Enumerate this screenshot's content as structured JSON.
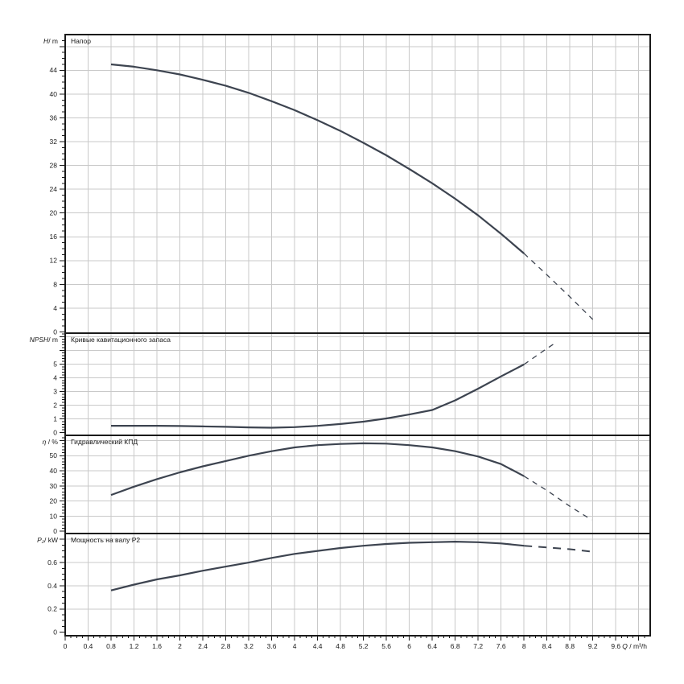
{
  "chart_meta": {
    "background": "#ffffff",
    "curve_color": "#3d4450",
    "grid_color": "#c9c9c9",
    "frame_color": "#1a1a1a",
    "text_color": "#1a1a1a",
    "x_axis": {
      "label_var": "Q",
      "label_unit": " / m³/h",
      "min": 0,
      "max": 10.2,
      "tick_step": 0.4,
      "minor_step": 0.1,
      "label_max": 9.6
    }
  },
  "chart_data": [
    {
      "type": "line",
      "name": "head",
      "title": "Напор",
      "ylabel_var": "H",
      "ylabel_unit": "/ m",
      "ylim": [
        -0.2,
        50
      ],
      "ytick_step": 4,
      "ytick_label_max": 44,
      "yminor_step": 1,
      "series": [
        {
          "name": "head-curve",
          "style": "solid",
          "x": [
            0.8,
            1.2,
            1.6,
            2,
            2.4,
            2.8,
            3.2,
            3.6,
            4,
            4.4,
            4.8,
            5.2,
            5.6,
            6,
            6.4,
            6.8,
            7.2,
            7.6,
            8
          ],
          "y": [
            45,
            44.6,
            44,
            43.3,
            42.4,
            41.4,
            40.2,
            38.8,
            37.3,
            35.6,
            33.8,
            31.8,
            29.7,
            27.4,
            25,
            22.4,
            19.6,
            16.5,
            13.2
          ]
        },
        {
          "name": "head-curve-extrapolated",
          "style": "dashed",
          "x": [
            8,
            8.4,
            8.8,
            9.2
          ],
          "y": [
            13.2,
            9.6,
            5.9,
            2.1
          ]
        }
      ]
    },
    {
      "type": "line",
      "name": "npsh",
      "title": "Кривые кавитационного запаса",
      "ylabel_var": "NPSH",
      "ylabel_unit": "/ m",
      "ylim": [
        -0.2,
        7.25
      ],
      "ytick_step": 1,
      "ytick_label_max": 5,
      "yminor_step": 0.2,
      "series": [
        {
          "name": "npsh-curve",
          "style": "solid",
          "x": [
            0.8,
            1.2,
            1.6,
            2,
            2.4,
            2.8,
            3.2,
            3.6,
            4,
            4.4,
            4.8,
            5.2,
            5.6,
            6,
            6.4,
            6.8,
            7.2,
            7.6,
            8
          ],
          "y": [
            0.5,
            0.5,
            0.5,
            0.48,
            0.45,
            0.42,
            0.38,
            0.36,
            0.4,
            0.49,
            0.63,
            0.8,
            1.03,
            1.32,
            1.65,
            2.35,
            3.2,
            4.1,
            4.97
          ]
        },
        {
          "name": "npsh-curve-extrapolated",
          "style": "dashed",
          "x": [
            8,
            8.3,
            8.55
          ],
          "y": [
            4.97,
            5.85,
            6.55
          ]
        }
      ]
    },
    {
      "type": "line",
      "name": "efficiency",
      "title": "Гидравлический КПД",
      "ylabel_var": "η",
      "ylabel_unit": " / %",
      "ylim": [
        -1.5,
        63.5
      ],
      "ytick_step": 10,
      "ytick_label_max": 50,
      "yminor_step": 2,
      "series": [
        {
          "name": "efficiency-curve",
          "style": "solid",
          "x": [
            0.8,
            1.2,
            1.6,
            2,
            2.4,
            2.8,
            3.2,
            3.6,
            4,
            4.4,
            4.8,
            5.2,
            5.6,
            6,
            6.4,
            6.8,
            7.2,
            7.6,
            8
          ],
          "y": [
            24,
            29.5,
            34.5,
            39,
            43,
            46.5,
            50,
            53,
            55.5,
            57,
            57.8,
            58.2,
            58,
            57,
            55.5,
            53,
            49.5,
            44.5,
            36.5
          ]
        },
        {
          "name": "efficiency-curve-extrapolated",
          "style": "dashed",
          "x": [
            8,
            8.4,
            8.8,
            9.18
          ],
          "y": [
            36.5,
            27,
            16.5,
            7.5
          ]
        }
      ]
    },
    {
      "type": "line",
      "name": "power",
      "title": "Мощность на валу P2",
      "ylabel_var": "P₂",
      "ylabel_unit": "/ kW",
      "ylim": [
        -0.03,
        0.85
      ],
      "ytick_step": 0.2,
      "ytick_label_max": 0.6,
      "yminor_step": 0.05,
      "series": [
        {
          "name": "power-curve",
          "style": "solid",
          "x": [
            0.8,
            1.2,
            1.6,
            2,
            2.4,
            2.8,
            3.2,
            3.6,
            4,
            4.4,
            4.8,
            5.2,
            5.6,
            6,
            6.4,
            6.8,
            7.2,
            7.6,
            8
          ],
          "y": [
            0.36,
            0.41,
            0.455,
            0.49,
            0.53,
            0.565,
            0.6,
            0.64,
            0.675,
            0.7,
            0.725,
            0.745,
            0.76,
            0.77,
            0.775,
            0.78,
            0.775,
            0.765,
            0.745
          ]
        },
        {
          "name": "power-curve-extrapolated",
          "style": "dashed-thick",
          "x": [
            8,
            8.4,
            8.8,
            9.25
          ],
          "y": [
            0.745,
            0.73,
            0.715,
            0.69
          ]
        }
      ]
    }
  ]
}
